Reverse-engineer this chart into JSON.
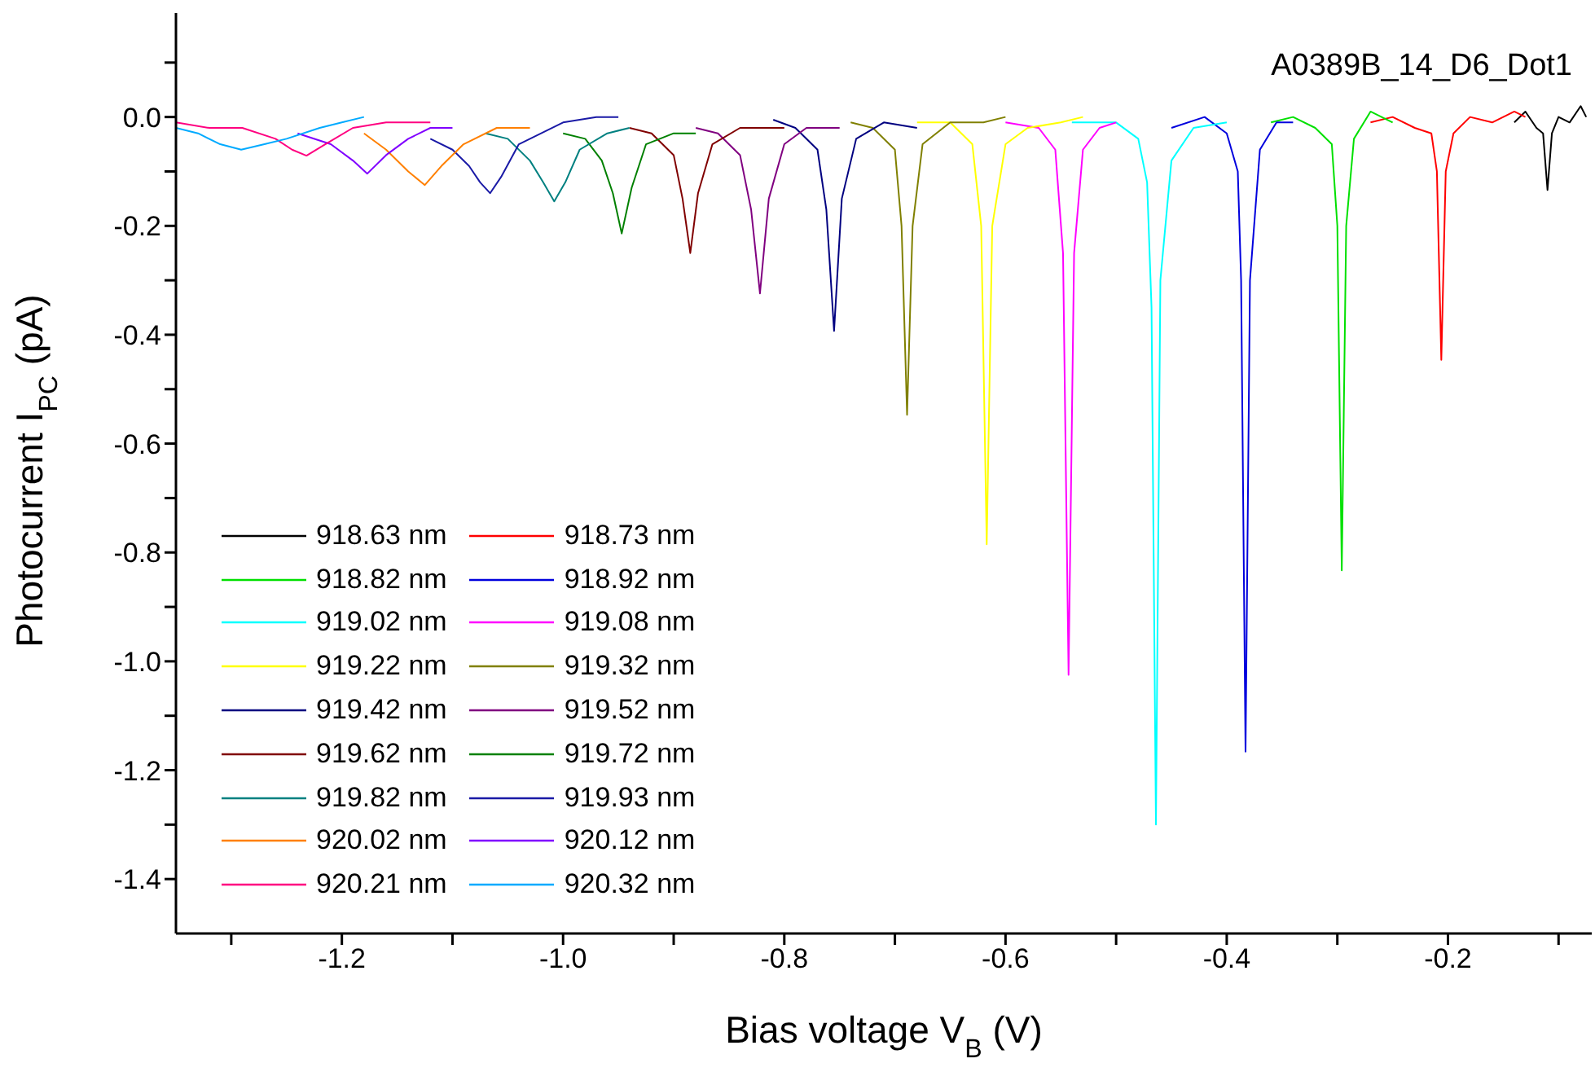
{
  "chart_data": {
    "type": "line",
    "xlabel": "Bias voltage V$_{B}$ (V)",
    "ylabel": "Photocurrent I$_{PC}$ (pA)",
    "annotations": [
      "A0389B_14_D6_Dot1"
    ],
    "legend": "bottom left",
    "xlim": [
      -1.35,
      -0.07
    ],
    "ylim": [
      -1.5,
      0.2
    ],
    "xticks": [
      {
        "value": -1.3,
        "label": null
      },
      -1.2,
      {
        "value": -1.1,
        "label": null
      },
      {
        "value": -1.0,
        "label": "-1.0"
      },
      {
        "value": -0.9,
        "label": null
      },
      -0.8,
      {
        "value": -0.7,
        "label": null
      },
      -0.6,
      {
        "value": -0.5,
        "label": null
      },
      -0.4,
      {
        "value": -0.3,
        "label": null
      },
      -0.2,
      {
        "value": -0.1,
        "label": null
      }
    ],
    "yticks": [
      {
        "value": 0.1,
        "label": null
      },
      {
        "value": 0,
        "label": "0.0"
      },
      {
        "value": -0.1,
        "label": null
      },
      -0.2,
      {
        "value": -0.3,
        "label": null
      },
      -0.4,
      {
        "value": -0.5,
        "label": null
      },
      -0.6,
      {
        "value": -0.7,
        "label": null
      },
      -0.8,
      {
        "value": -0.9,
        "label": null
      },
      {
        "value": -1.0,
        "label": "-1.0"
      },
      {
        "value": -1.1,
        "label": null
      },
      -1.2,
      {
        "value": -1.3,
        "label": null
      },
      -1.4
    ],
    "series": [
      {
        "name": "918.63 nm",
        "color": "#000000",
        "x": [
          -0.14,
          -0.13,
          -0.12,
          -0.114,
          -0.11,
          -0.106,
          -0.1,
          -0.09,
          -0.08,
          -0.075
        ],
        "values": [
          -0.01,
          0.01,
          -0.02,
          -0.03,
          -0.134,
          -0.03,
          0.0,
          -0.01,
          0.02,
          0.0
        ]
      },
      {
        "name": "918.73 nm",
        "color": "#ff0000",
        "x": [
          -0.27,
          -0.25,
          -0.23,
          -0.215,
          -0.21,
          -0.206,
          -0.202,
          -0.195,
          -0.18,
          -0.16,
          -0.14,
          -0.13
        ],
        "values": [
          -0.01,
          0.0,
          -0.02,
          -0.03,
          -0.1,
          -0.446,
          -0.1,
          -0.03,
          0.0,
          -0.01,
          0.01,
          0.0
        ]
      },
      {
        "name": "918.82 nm",
        "color": "#00e000",
        "x": [
          -0.36,
          -0.34,
          -0.32,
          -0.305,
          -0.3,
          -0.296,
          -0.292,
          -0.285,
          -0.27,
          -0.25
        ],
        "values": [
          -0.01,
          0.0,
          -0.02,
          -0.05,
          -0.2,
          -0.833,
          -0.2,
          -0.04,
          0.01,
          -0.01
        ]
      },
      {
        "name": "918.92 nm",
        "color": "#0000dd",
        "x": [
          -0.45,
          -0.42,
          -0.4,
          -0.39,
          -0.387,
          -0.383,
          -0.379,
          -0.37,
          -0.355,
          -0.34
        ],
        "values": [
          -0.02,
          0.0,
          -0.03,
          -0.1,
          -0.3,
          -1.166,
          -0.3,
          -0.06,
          -0.01,
          -0.01
        ]
      },
      {
        "name": "919.02 nm",
        "color": "#00ffff",
        "x": [
          -0.54,
          -0.5,
          -0.48,
          -0.472,
          -0.468,
          -0.464,
          -0.46,
          -0.45,
          -0.43,
          -0.4
        ],
        "values": [
          -0.01,
          -0.01,
          -0.04,
          -0.12,
          -0.35,
          -1.3,
          -0.3,
          -0.08,
          -0.02,
          -0.01
        ]
      },
      {
        "name": "919.08 nm",
        "color": "#ff00ff",
        "x": [
          -0.6,
          -0.57,
          -0.555,
          -0.548,
          -0.543,
          -0.538,
          -0.53,
          -0.515,
          -0.5
        ],
        "values": [
          -0.01,
          -0.02,
          -0.06,
          -0.25,
          -1.025,
          -0.25,
          -0.06,
          -0.02,
          -0.01
        ]
      },
      {
        "name": "919.22 nm",
        "color": "#ffff00",
        "x": [
          -0.68,
          -0.65,
          -0.63,
          -0.622,
          -0.617,
          -0.612,
          -0.6,
          -0.58,
          -0.55,
          -0.53
        ],
        "values": [
          -0.01,
          -0.01,
          -0.05,
          -0.2,
          -0.785,
          -0.2,
          -0.05,
          -0.02,
          -0.01,
          0.0
        ]
      },
      {
        "name": "919.32 nm",
        "color": "#808000",
        "x": [
          -0.74,
          -0.72,
          -0.7,
          -0.694,
          -0.689,
          -0.684,
          -0.675,
          -0.65,
          -0.62,
          -0.6
        ],
        "values": [
          -0.01,
          -0.02,
          -0.06,
          -0.2,
          -0.547,
          -0.2,
          -0.05,
          -0.01,
          -0.01,
          0.0
        ]
      },
      {
        "name": "919.42 nm",
        "color": "#000080",
        "x": [
          -0.81,
          -0.79,
          -0.77,
          -0.762,
          -0.755,
          -0.748,
          -0.735,
          -0.71,
          -0.68
        ],
        "values": [
          -0.005,
          -0.02,
          -0.06,
          -0.17,
          -0.393,
          -0.15,
          -0.04,
          -0.01,
          -0.02
        ]
      },
      {
        "name": "919.52 nm",
        "color": "#800080",
        "x": [
          -0.88,
          -0.86,
          -0.84,
          -0.83,
          -0.822,
          -0.814,
          -0.8,
          -0.78,
          -0.75
        ],
        "values": [
          -0.02,
          -0.03,
          -0.07,
          -0.17,
          -0.324,
          -0.15,
          -0.05,
          -0.02,
          -0.02
        ]
      },
      {
        "name": "919.62 nm",
        "color": "#800000",
        "x": [
          -0.94,
          -0.92,
          -0.9,
          -0.892,
          -0.885,
          -0.878,
          -0.865,
          -0.84,
          -0.8
        ],
        "values": [
          -0.02,
          -0.03,
          -0.07,
          -0.15,
          -0.25,
          -0.14,
          -0.05,
          -0.02,
          -0.02
        ]
      },
      {
        "name": "919.72 nm",
        "color": "#008000",
        "x": [
          -1.0,
          -0.98,
          -0.965,
          -0.955,
          -0.947,
          -0.938,
          -0.925,
          -0.9,
          -0.88
        ],
        "values": [
          -0.03,
          -0.04,
          -0.08,
          -0.14,
          -0.214,
          -0.13,
          -0.05,
          -0.03,
          -0.03
        ]
      },
      {
        "name": "919.82 nm",
        "color": "#008080",
        "x": [
          -1.07,
          -1.05,
          -1.03,
          -1.018,
          -1.008,
          -0.998,
          -0.985,
          -0.96,
          -0.94
        ],
        "values": [
          -0.03,
          -0.04,
          -0.08,
          -0.12,
          -0.155,
          -0.12,
          -0.06,
          -0.03,
          -0.02
        ]
      },
      {
        "name": "919.93 nm",
        "color": "#1a1aa6",
        "x": [
          -1.12,
          -1.1,
          -1.085,
          -1.075,
          -1.066,
          -1.056,
          -1.04,
          -1.0,
          -0.97,
          -0.95
        ],
        "values": [
          -0.04,
          -0.06,
          -0.09,
          -0.12,
          -0.14,
          -0.11,
          -0.05,
          -0.01,
          0.0,
          0.0
        ]
      },
      {
        "name": "920.02 nm",
        "color": "#ff8000",
        "x": [
          -1.18,
          -1.16,
          -1.14,
          -1.125,
          -1.11,
          -1.09,
          -1.06,
          -1.03
        ],
        "values": [
          -0.03,
          -0.06,
          -0.1,
          -0.125,
          -0.09,
          -0.05,
          -0.02,
          -0.02
        ]
      },
      {
        "name": "920.12 nm",
        "color": "#8000ff",
        "x": [
          -1.24,
          -1.21,
          -1.19,
          -1.177,
          -1.16,
          -1.14,
          -1.12,
          -1.1
        ],
        "values": [
          -0.03,
          -0.05,
          -0.08,
          -0.104,
          -0.07,
          -0.04,
          -0.02,
          -0.02
        ]
      },
      {
        "name": "920.21 nm",
        "color": "#ff0080",
        "x": [
          -1.35,
          -1.32,
          -1.29,
          -1.26,
          -1.245,
          -1.232,
          -1.215,
          -1.19,
          -1.16,
          -1.12
        ],
        "values": [
          -0.01,
          -0.02,
          -0.02,
          -0.04,
          -0.06,
          -0.071,
          -0.05,
          -0.02,
          -0.01,
          -0.01
        ]
      },
      {
        "name": "920.32 nm",
        "color": "#00aaff",
        "x": [
          -1.35,
          -1.33,
          -1.31,
          -1.291,
          -1.27,
          -1.25,
          -1.22,
          -1.2,
          -1.18
        ],
        "values": [
          -0.02,
          -0.03,
          -0.05,
          -0.06,
          -0.05,
          -0.04,
          -0.02,
          -0.01,
          0.0
        ]
      }
    ]
  }
}
